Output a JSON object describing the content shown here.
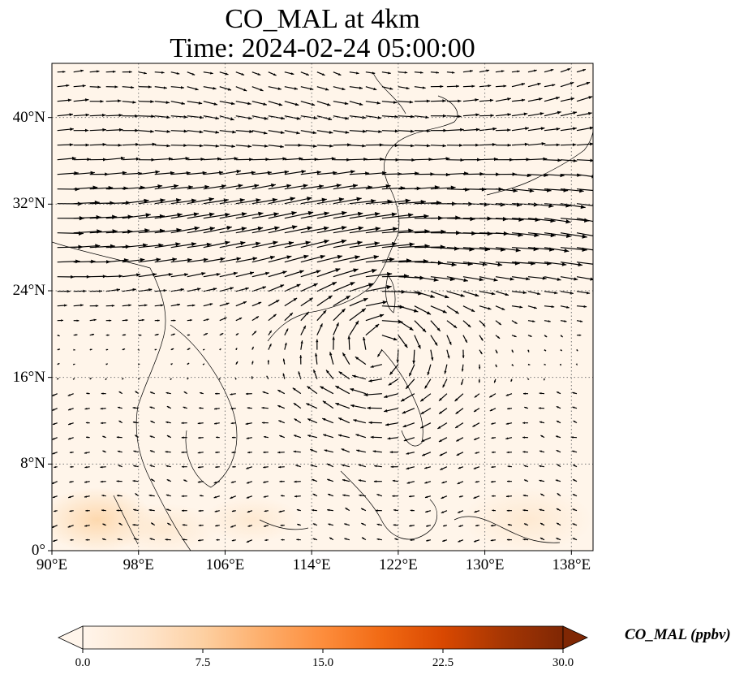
{
  "title": {
    "line1": "CO_MAL at 4km",
    "line2": "Time: 2024-02-24 05:00:00"
  },
  "map": {
    "lon_range": [
      90,
      140
    ],
    "lat_range": [
      0,
      45
    ],
    "lat_ticks": [
      {
        "value": 0,
        "label": "0°"
      },
      {
        "value": 8,
        "label": "8°N"
      },
      {
        "value": 16,
        "label": "16°N"
      },
      {
        "value": 24,
        "label": "24°N"
      },
      {
        "value": 32,
        "label": "32°N"
      },
      {
        "value": 40,
        "label": "40°N"
      }
    ],
    "lon_ticks": [
      {
        "value": 90,
        "label": "90°E"
      },
      {
        "value": 98,
        "label": "98°E"
      },
      {
        "value": 106,
        "label": "106°E"
      },
      {
        "value": 114,
        "label": "114°E"
      },
      {
        "value": 122,
        "label": "122°E"
      },
      {
        "value": 130,
        "label": "130°E"
      },
      {
        "value": 138,
        "label": "138°E"
      }
    ],
    "gridlines": true,
    "vectors": "wind vectors (black arrows)"
  },
  "colorbar": {
    "label": "CO_MAL (ppbv)",
    "range": [
      0,
      30
    ],
    "ticks": [
      "0.0",
      "7.5",
      "15.0",
      "22.5",
      "30.0"
    ],
    "colormap": [
      "#fff5eb",
      "#fee6ce",
      "#fdd0a2",
      "#fdae6b",
      "#fd8d3c",
      "#f16913",
      "#d94801",
      "#a63603",
      "#7f2704"
    ],
    "extend": "both"
  }
}
